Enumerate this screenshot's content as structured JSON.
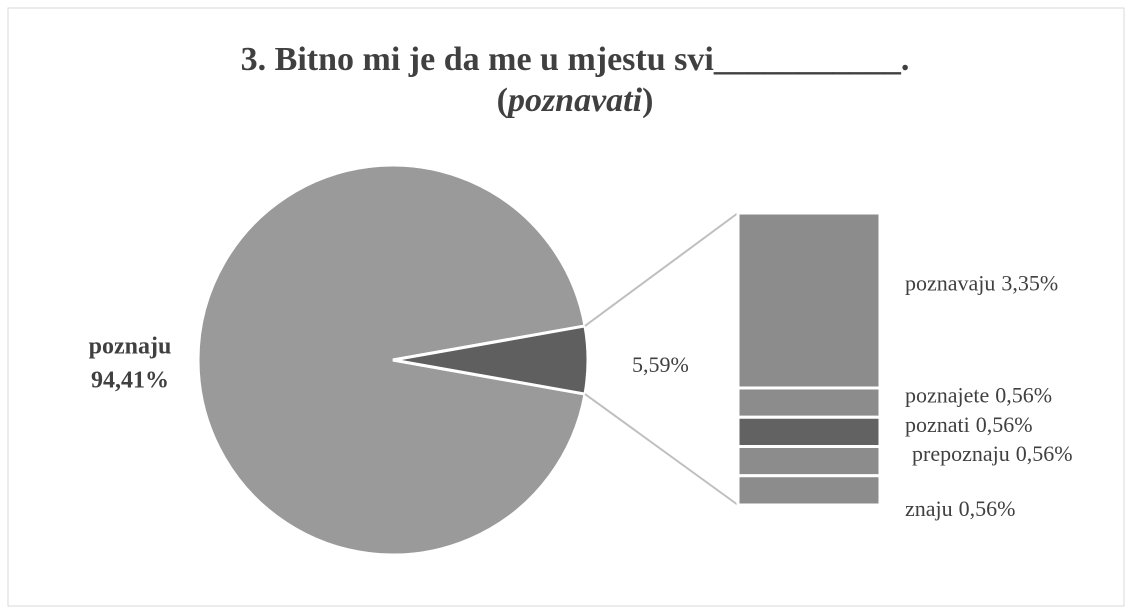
{
  "chart_data": {
    "type": "bar-of-pie",
    "title": "3. Bitno mi je da me u mjestu svi___________.",
    "subtitle": "(poznavati)",
    "categories": [
      "poznaju"
    ],
    "values": [
      94.41
    ],
    "value_labels": [
      "94,41%"
    ],
    "color": "#9a9a9a",
    "other_value": 5.59,
    "other_label": "5,59%",
    "other_color": "#5f5f5f",
    "breakdown": {
      "categories": [
        "poznavaju",
        "poznajete",
        "poznati",
        "prepoznaju",
        "znaju"
      ],
      "values": [
        3.35,
        0.56,
        0.56,
        0.56,
        0.56
      ],
      "value_labels": [
        "3,35%",
        "0,56%",
        "0,56%",
        "0,56%",
        "0,56%"
      ],
      "colors": [
        "#8c8c8c",
        "#8c8c8c",
        "#626262",
        "#8c8c8c",
        "#8c8c8c"
      ]
    }
  }
}
